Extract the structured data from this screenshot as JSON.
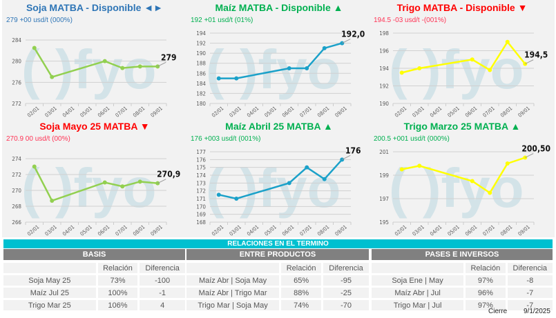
{
  "chart_data": [
    {
      "type": "line",
      "title": "Soja MATBA - Disponible ◄►",
      "subtitle": "279 +00 usd/t (000%)",
      "title_color": "#2e75b6",
      "sub_color": "#2e75b6",
      "line_color": "#92d050",
      "categories": [
        "02/01",
        "03/01",
        "04/01",
        "05/01",
        "06/01",
        "07/01",
        "08/01",
        "09/01"
      ],
      "values": [
        282.5,
        277,
        null,
        null,
        280,
        278.7,
        279,
        279
      ],
      "last_label": "279",
      "ylim": [
        272,
        284
      ],
      "yticks": [
        272,
        276,
        280,
        284
      ]
    },
    {
      "type": "line",
      "title": "Maíz MATBA - Disponible ▲",
      "subtitle": "192 +01 usd/t (01%)",
      "title_color": "#00b050",
      "sub_color": "#00b050",
      "line_color": "#1ba1c9",
      "categories": [
        "02/01",
        "03/01",
        "04/01",
        "05/01",
        "06/01",
        "07/01",
        "08/01",
        "09/01"
      ],
      "values": [
        185,
        185,
        null,
        null,
        187,
        187,
        191,
        192
      ],
      "last_label": "192,0",
      "ylim": [
        180,
        194
      ],
      "yticks": [
        180,
        182,
        184,
        186,
        188,
        190,
        192,
        194
      ]
    },
    {
      "type": "line",
      "title": "Trigo MATBA - Disponible ▼",
      "subtitle": "194.5 -03 usd/t -(001%)",
      "title_color": "#ff0000",
      "sub_color": "#ff3355",
      "line_color": "#ffff00",
      "categories": [
        "02/01",
        "03/01",
        "04/01",
        "05/01",
        "06/01",
        "07/01",
        "08/01",
        "09/01"
      ],
      "values": [
        193.5,
        194,
        null,
        null,
        195,
        193.8,
        197,
        194.5
      ],
      "last_label": "194,5",
      "ylim": [
        190,
        198
      ],
      "yticks": [
        190,
        192,
        194,
        196,
        198
      ]
    },
    {
      "type": "line",
      "title": "Soja Mayo 25 MATBA ▼",
      "subtitle": "270.9 00 usd/t (00%)",
      "title_color": "#ff0000",
      "sub_color": "#ff3355",
      "line_color": "#92d050",
      "categories": [
        "02/01",
        "03/01",
        "04/01",
        "05/01",
        "06/01",
        "07/01",
        "08/01",
        "09/01"
      ],
      "values": [
        273,
        268.7,
        null,
        null,
        271,
        270.5,
        271.1,
        270.9
      ],
      "last_label": "270,9",
      "ylim": [
        266,
        274
      ],
      "yticks": [
        266,
        268,
        270,
        272,
        274
      ]
    },
    {
      "type": "line",
      "title": "Maíz Abril 25 MATBA ▲",
      "subtitle": "176 +003 usd/t (001%)",
      "title_color": "#00b050",
      "sub_color": "#00b050",
      "line_color": "#1ba1c9",
      "categories": [
        "02/01",
        "03/01",
        "04/01",
        "05/01",
        "06/01",
        "07/01",
        "08/01",
        "09/01"
      ],
      "values": [
        171.5,
        171,
        null,
        null,
        173,
        175,
        173.5,
        176
      ],
      "last_label": "176",
      "ylim": [
        168,
        177
      ],
      "yticks": [
        168,
        169,
        170,
        171,
        172,
        173,
        174,
        175,
        176,
        177
      ]
    },
    {
      "type": "line",
      "title": "Trigo Marzo  25 MATBA ▲",
      "subtitle": "200.5 +001 usd/t (000%)",
      "title_color": "#00b050",
      "sub_color": "#00b050",
      "line_color": "#ffff00",
      "categories": [
        "02/01",
        "03/01",
        "04/01",
        "05/01",
        "06/01",
        "07/01",
        "08/01",
        "09/01"
      ],
      "values": [
        199.5,
        199.8,
        null,
        null,
        198.5,
        197.5,
        200,
        200.5
      ],
      "last_label": "200,50",
      "ylim": [
        195,
        201
      ],
      "yticks": [
        195,
        197,
        199,
        201
      ]
    }
  ],
  "relaciones": {
    "title": "RELACIONES EN EL TERMINO",
    "sections": [
      {
        "title": "BASIS",
        "col_relacion": "Relación",
        "col_diferencia": "Diferencia",
        "rows": [
          [
            "Soja May 25",
            "73%",
            "-100"
          ],
          [
            "Maíz Jul 25",
            "100%",
            "-1"
          ],
          [
            "Trigo Mar 25",
            "106%",
            "4"
          ]
        ]
      },
      {
        "title": "ENTRE PRODUCTOS",
        "col_relacion": "Relación",
        "col_diferencia": "Diferencia",
        "rows": [
          [
            "Maíz Abr | Soja May",
            "65%",
            "-95"
          ],
          [
            "Maíz Abr | Trigo Mar",
            "88%",
            "-25"
          ],
          [
            "Trigo Mar | Soja May",
            "74%",
            "-70"
          ]
        ]
      },
      {
        "title": "PASES E INVERSOS",
        "col_relacion": "Relación",
        "col_diferencia": "Diferencia",
        "rows": [
          [
            "Soja Ene | May",
            "97%",
            "-8"
          ],
          [
            "Maíz Abr | Jul",
            "96%",
            "-7"
          ],
          [
            "Trigo Mar | Jul",
            "97%",
            "-7"
          ]
        ]
      }
    ]
  },
  "footer": {
    "label": "Cierre",
    "date": "9/1/2025"
  }
}
